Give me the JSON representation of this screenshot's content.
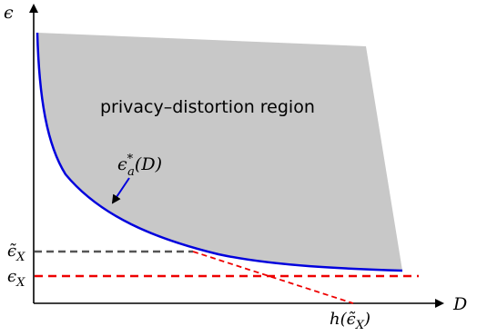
{
  "colors": {
    "region_fill": "#c8c8c8",
    "curve": "#0000dd",
    "eps_x_line": "#ee0000",
    "tilde_eps_x_line": "#555555",
    "tangent_line": "#ee0000",
    "axis": "#000000"
  },
  "axes": {
    "y_label": "ϵ",
    "x_label": "D"
  },
  "region": {
    "label": "privacy–distortion region"
  },
  "curve": {
    "label_main": "ϵ",
    "label_sup": "*",
    "label_sub": "a",
    "label_arg": "(D)"
  },
  "levels": {
    "tilde_eps_x": {
      "base": "ϵ̃",
      "sub": "X"
    },
    "eps_x": {
      "base": "ϵ",
      "sub": "X"
    }
  },
  "intercept": {
    "fn": "h(",
    "base": "ϵ̃",
    "sub": "X",
    "close": ")"
  }
}
